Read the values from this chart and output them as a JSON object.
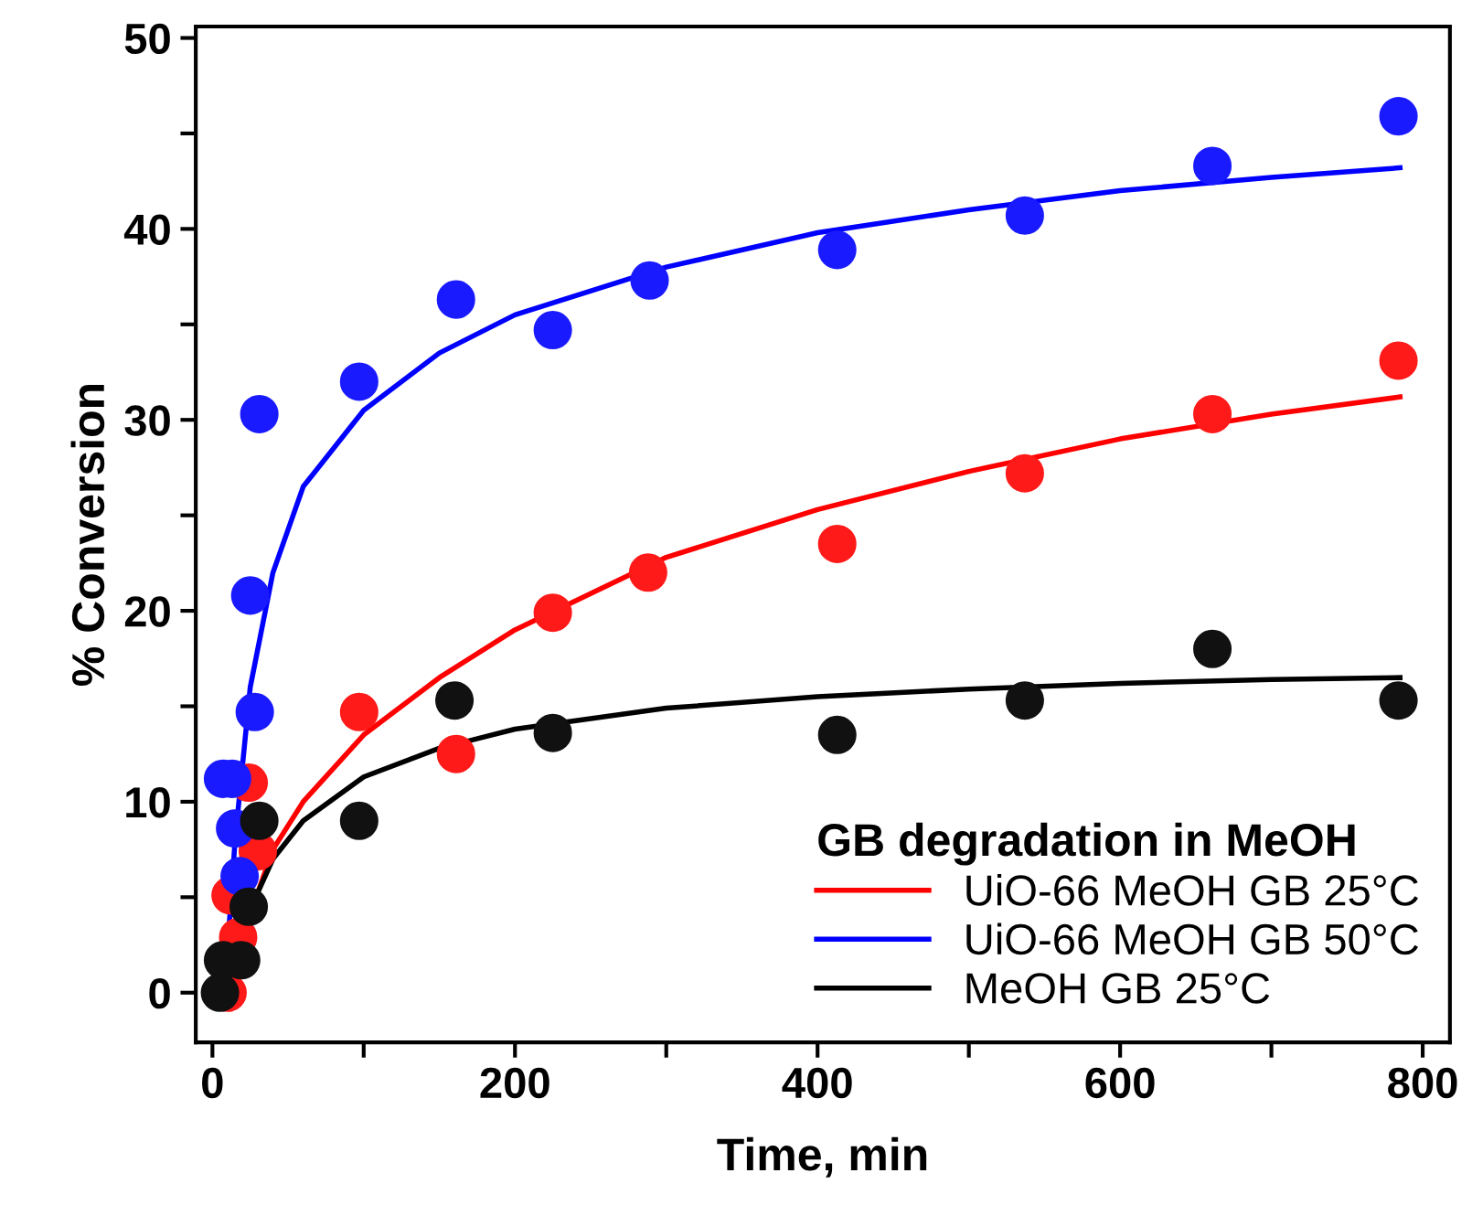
{
  "chart_data": {
    "type": "scatter",
    "xlabel": "Time, min",
    "ylabel": "% Conversion",
    "legend_title": "GB degradation in MeOH",
    "legend": "bottom right",
    "grid": false,
    "xlim": [
      -11,
      818
    ],
    "ylim": [
      -2.6,
      50.6
    ],
    "xticks": [
      0,
      {
        "value": 100,
        "label": null
      },
      200,
      {
        "value": 300,
        "label": null
      },
      400,
      {
        "value": 500,
        "label": null
      },
      600,
      {
        "value": 700,
        "label": null
      },
      800
    ],
    "yticks": [
      0,
      {
        "value": 5,
        "label": null
      },
      10,
      {
        "value": 15,
        "label": null
      },
      20,
      {
        "value": 25,
        "label": null
      },
      30,
      {
        "value": 35,
        "label": null
      },
      40,
      {
        "value": 45,
        "label": null
      },
      50
    ],
    "series": [
      {
        "marker": "circle",
        "color": "#ff1a1a",
        "x": [
          10,
          12,
          17,
          24,
          30,
          97,
          161,
          225,
          288,
          413,
          537,
          661,
          784
        ],
        "values": [
          0,
          5.1,
          2.9,
          11.0,
          7.4,
          14.7,
          12.5,
          19.9,
          22.0,
          23.5,
          27.2,
          30.3,
          33.1
        ]
      },
      {
        "marker": "circle",
        "color": "#1a1aff",
        "x": [
          7,
          13,
          15,
          18,
          25,
          28,
          31,
          97,
          161,
          225,
          289,
          413,
          537,
          661,
          784
        ],
        "values": [
          11.2,
          11.2,
          8.6,
          6.1,
          20.8,
          14.7,
          30.3,
          32.0,
          36.3,
          34.7,
          37.3,
          38.9,
          40.7,
          43.3,
          45.9
        ]
      },
      {
        "marker": "circle",
        "color": "#111111",
        "x": [
          5,
          7,
          19,
          24,
          31,
          97,
          160,
          225,
          413,
          537,
          661,
          784
        ],
        "values": [
          0,
          1.7,
          1.7,
          4.5,
          9.0,
          9.0,
          15.3,
          13.6,
          13.5,
          15.3,
          18.0,
          15.3
        ]
      },
      {
        "type": "line",
        "name": "UiO-66 MeOH GB 25°C",
        "color": "#ff0000",
        "marker": "none",
        "line_style": "solid",
        "x": [
          8,
          20,
          40,
          60,
          100,
          150,
          200,
          300,
          400,
          500,
          600,
          700,
          785
        ],
        "values": [
          0,
          3,
          7.5,
          10,
          13.5,
          16.5,
          19,
          22.8,
          25.3,
          27.3,
          29,
          30.3,
          31.2
        ]
      },
      {
        "type": "line",
        "name": "UiO-66 MeOH GB 50°C",
        "color": "#0000ff",
        "marker": "none",
        "line_style": "solid",
        "x": [
          8,
          15,
          25,
          40,
          60,
          100,
          150,
          200,
          300,
          400,
          500,
          600,
          700,
          785
        ],
        "values": [
          0,
          8,
          16,
          22,
          26.5,
          30.5,
          33.5,
          35.5,
          38,
          39.8,
          41,
          42,
          42.7,
          43.2
        ]
      },
      {
        "type": "line",
        "name": "MeOH GB 25°C",
        "color": "#000000",
        "marker": "none",
        "line_style": "solid",
        "x": [
          8,
          20,
          40,
          60,
          100,
          150,
          200,
          300,
          400,
          500,
          600,
          700,
          785
        ],
        "values": [
          0,
          3.5,
          7,
          9,
          11.3,
          12.8,
          13.8,
          14.9,
          15.5,
          15.9,
          16.2,
          16.4,
          16.5
        ]
      }
    ]
  }
}
